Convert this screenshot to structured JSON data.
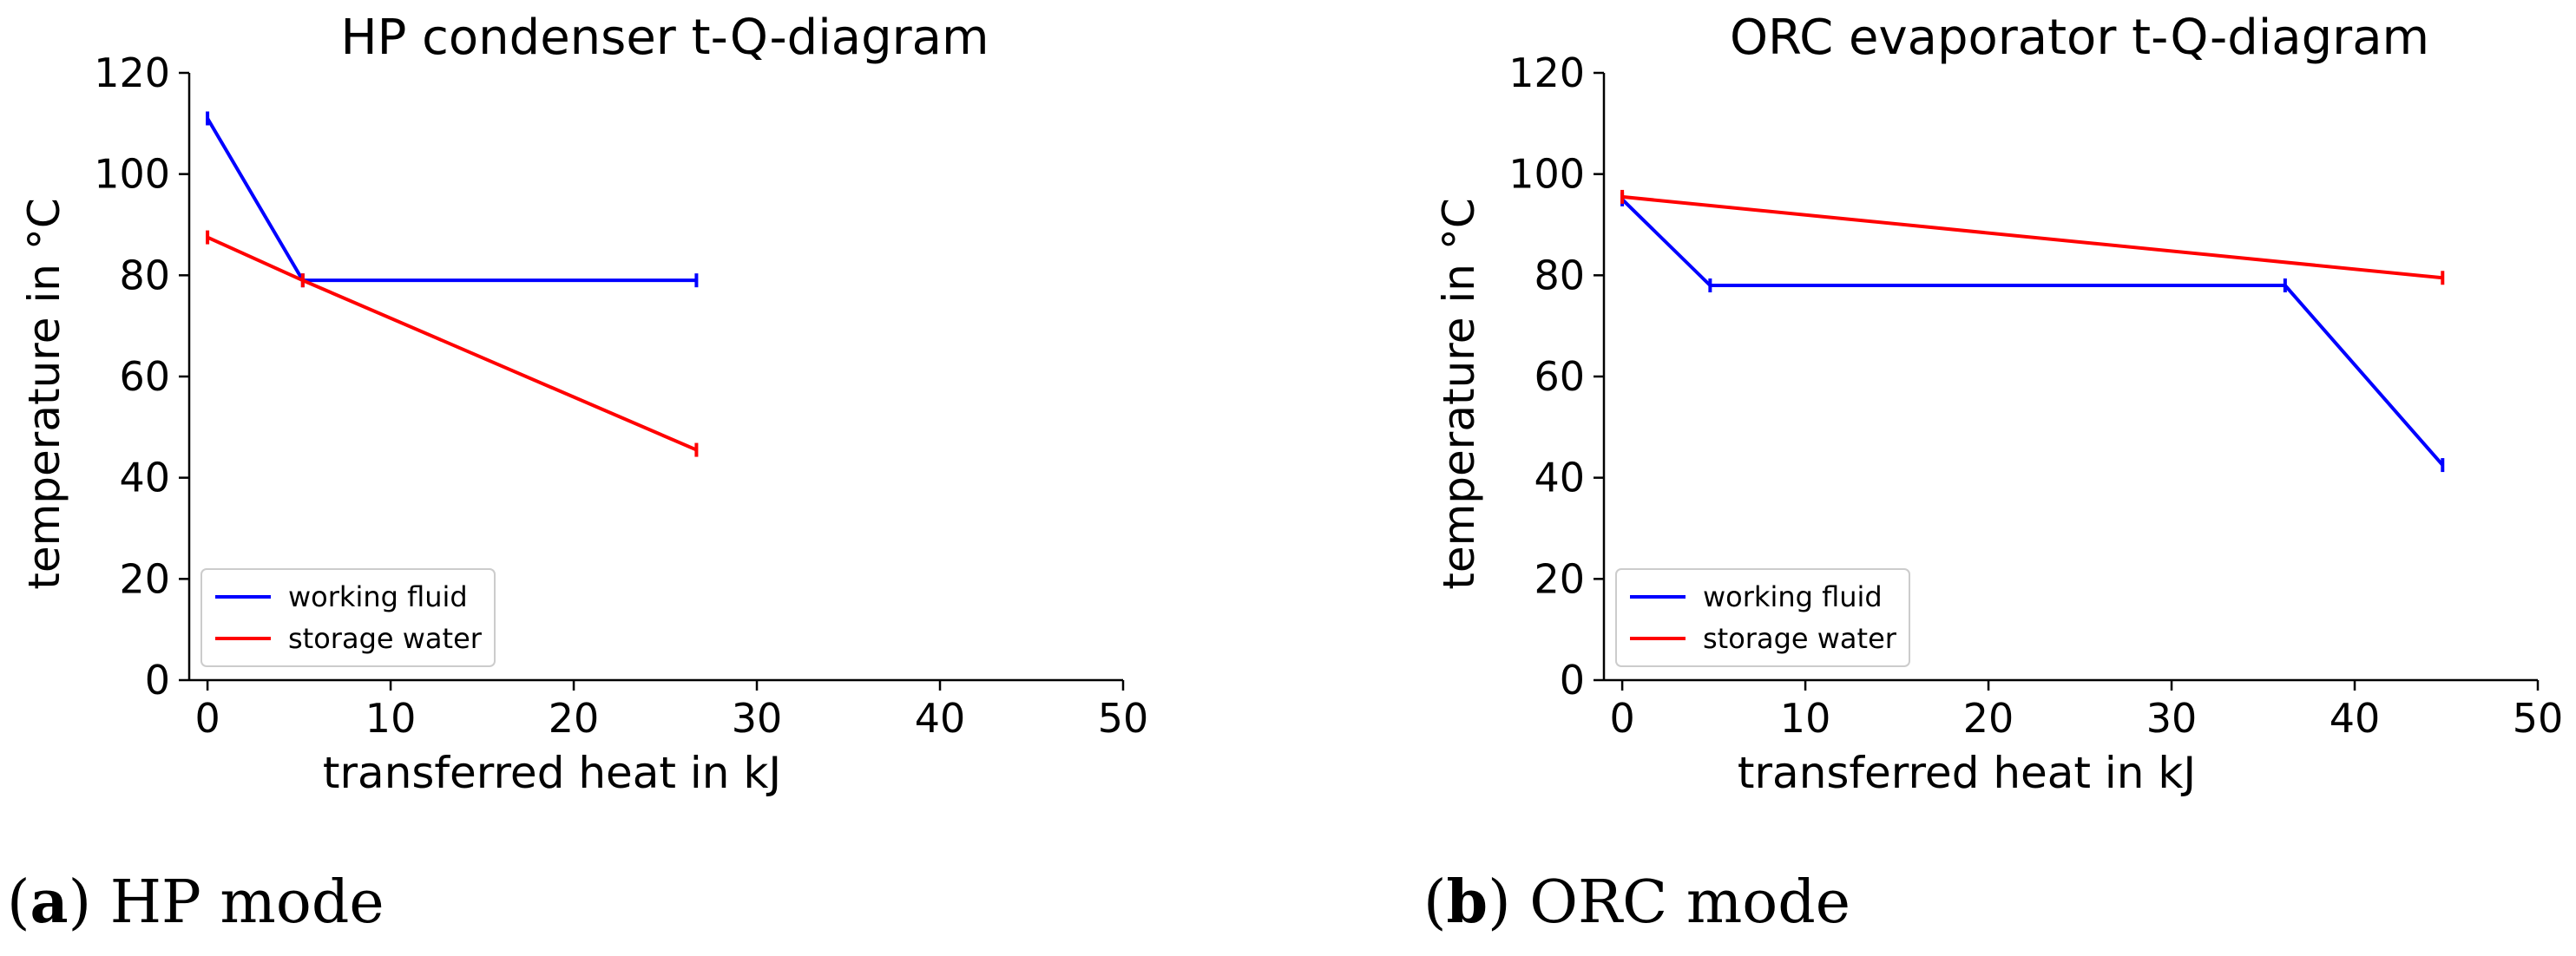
{
  "chart_data": [
    {
      "type": "line",
      "title": "HP condenser t-Q-diagram",
      "xlabel": "transferred heat in kJ",
      "ylabel": "temperature in °C",
      "xlim": [
        -1,
        50
      ],
      "ylim": [
        0,
        120
      ],
      "xticks": [
        0,
        10,
        20,
        30,
        40,
        50
      ],
      "yticks": [
        0,
        20,
        40,
        60,
        80,
        100,
        120
      ],
      "legend_position": "lower-left",
      "series": [
        {
          "name": "working fluid",
          "color": "#0000ff",
          "x": [
            0,
            5.2,
            26.7
          ],
          "y": [
            111,
            79,
            79
          ]
        },
        {
          "name": "storage water",
          "color": "#ff0000",
          "x": [
            0,
            5.2,
            26.7
          ],
          "y": [
            87.5,
            79,
            45.5
          ]
        }
      ]
    },
    {
      "type": "line",
      "title": "ORC evaporator t-Q-diagram",
      "xlabel": "transferred heat in kJ",
      "ylabel": "temperature in °C",
      "xlim": [
        -1,
        50
      ],
      "ylim": [
        0,
        120
      ],
      "xticks": [
        0,
        10,
        20,
        30,
        40,
        50
      ],
      "yticks": [
        0,
        20,
        40,
        60,
        80,
        100,
        120
      ],
      "legend_position": "lower-left",
      "series": [
        {
          "name": "working fluid",
          "color": "#0000ff",
          "x": [
            0,
            4.8,
            36.2,
            44.8
          ],
          "y": [
            95,
            78,
            78,
            42.5
          ]
        },
        {
          "name": "storage water",
          "color": "#ff0000",
          "x": [
            0,
            44.8
          ],
          "y": [
            95.5,
            79.5
          ]
        }
      ]
    }
  ],
  "captions": [
    {
      "label": "a",
      "text": "HP mode"
    },
    {
      "label": "b",
      "text": "ORC mode"
    }
  ]
}
